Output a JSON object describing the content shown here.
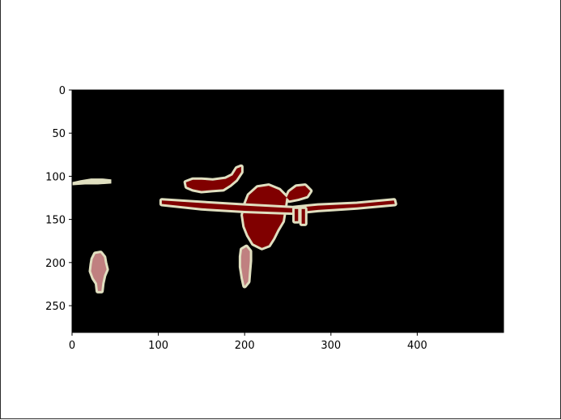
{
  "chart_data": {
    "type": "heatmap",
    "title": "",
    "xlabel": "",
    "ylabel": "",
    "xlim": [
      0,
      500
    ],
    "ylim": [
      281,
      0
    ],
    "grid": false,
    "x_ticks": [
      0,
      100,
      200,
      300,
      400
    ],
    "y_ticks": [
      0,
      50,
      100,
      150,
      200,
      250
    ],
    "colors": {
      "background": "#000000",
      "object_class_a": "#800000",
      "object_class_b": "#c08080",
      "boundary": "#e0dfc0"
    },
    "regions": [
      {
        "label": "aircraft-body",
        "class": "object_class_a",
        "shape": "polygon",
        "points": [
          [
            205,
            122
          ],
          [
            215,
            113
          ],
          [
            228,
            111
          ],
          [
            240,
            116
          ],
          [
            247,
            123
          ],
          [
            252,
            128
          ],
          [
            262,
            126
          ],
          [
            272,
            123
          ],
          [
            276,
            117
          ],
          [
            270,
            111
          ],
          [
            260,
            112
          ],
          [
            252,
            118
          ],
          [
            248,
            126
          ],
          [
            246,
            140
          ],
          [
            244,
            152
          ],
          [
            238,
            162
          ],
          [
            233,
            172
          ],
          [
            228,
            180
          ],
          [
            220,
            183
          ],
          [
            210,
            178
          ],
          [
            204,
            168
          ],
          [
            200,
            158
          ],
          [
            198,
            145
          ],
          [
            201,
            132
          ]
        ]
      },
      {
        "label": "aircraft-wing",
        "class": "object_class_a",
        "shape": "polygon",
        "points": [
          [
            104,
            128
          ],
          [
            150,
            131
          ],
          [
            200,
            134
          ],
          [
            255,
            137
          ],
          [
            285,
            134
          ],
          [
            330,
            132
          ],
          [
            373,
            128
          ],
          [
            374,
            132
          ],
          [
            330,
            136
          ],
          [
            285,
            139
          ],
          [
            255,
            142
          ],
          [
            200,
            140
          ],
          [
            150,
            137
          ],
          [
            104,
            132
          ]
        ]
      },
      {
        "label": "aircraft-wing-strut-1",
        "class": "object_class_a",
        "shape": "polygon",
        "points": [
          [
            258,
            138
          ],
          [
            262,
            138
          ],
          [
            262,
            152
          ],
          [
            258,
            152
          ]
        ]
      },
      {
        "label": "aircraft-wing-strut-2",
        "class": "object_class_a",
        "shape": "polygon",
        "points": [
          [
            266,
            138
          ],
          [
            270,
            138
          ],
          [
            270,
            155
          ],
          [
            266,
            155
          ]
        ]
      },
      {
        "label": "aircraft-small",
        "class": "object_class_a",
        "shape": "polygon",
        "points": [
          [
            132,
            107
          ],
          [
            140,
            104
          ],
          [
            150,
            104
          ],
          [
            163,
            105
          ],
          [
            178,
            103
          ],
          [
            186,
            99
          ],
          [
            191,
            91
          ],
          [
            196,
            89
          ],
          [
            196,
            95
          ],
          [
            190,
            104
          ],
          [
            183,
            110
          ],
          [
            175,
            115
          ],
          [
            162,
            116
          ],
          [
            150,
            117
          ],
          [
            140,
            115
          ],
          [
            133,
            112
          ]
        ]
      },
      {
        "label": "person-1",
        "class": "object_class_b",
        "shape": "polygon",
        "points": [
          [
            24,
            196
          ],
          [
            27,
            190
          ],
          [
            33,
            189
          ],
          [
            37,
            194
          ],
          [
            38,
            200
          ],
          [
            40,
            208
          ],
          [
            37,
            215
          ],
          [
            35,
            224
          ],
          [
            34,
            233
          ],
          [
            30,
            233
          ],
          [
            29,
            224
          ],
          [
            25,
            218
          ],
          [
            22,
            210
          ],
          [
            23,
            202
          ]
        ]
      },
      {
        "label": "person-2",
        "class": "object_class_b",
        "shape": "polygon",
        "points": [
          [
            197,
            185
          ],
          [
            202,
            182
          ],
          [
            206,
            187
          ],
          [
            206,
            198
          ],
          [
            205,
            210
          ],
          [
            204,
            222
          ],
          [
            200,
            227
          ],
          [
            198,
            218
          ],
          [
            196,
            205
          ],
          [
            196,
            193
          ]
        ]
      },
      {
        "label": "boundary-strip",
        "class": "boundary",
        "shape": "polygon",
        "points": [
          [
            1,
            107
          ],
          [
            10,
            105
          ],
          [
            22,
            103
          ],
          [
            35,
            103
          ],
          [
            45,
            104
          ],
          [
            45,
            108
          ],
          [
            30,
            109
          ],
          [
            15,
            109
          ],
          [
            1,
            110
          ]
        ]
      }
    ]
  }
}
